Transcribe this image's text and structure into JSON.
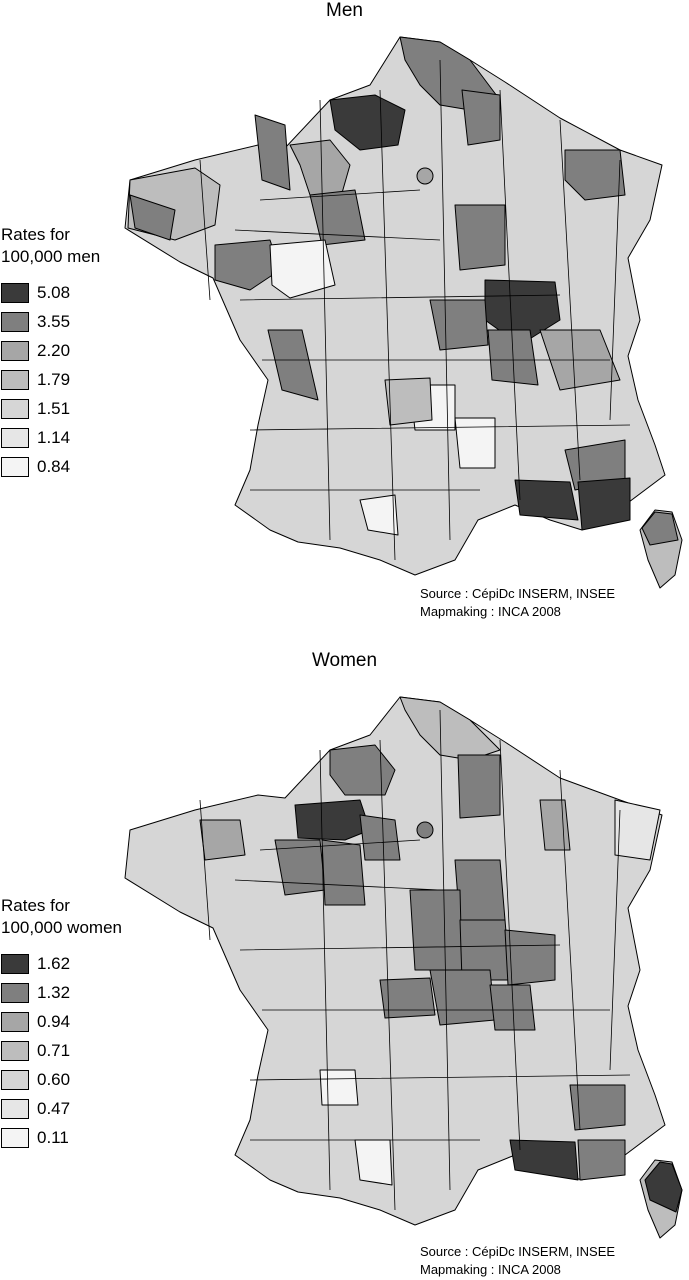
{
  "maps": [
    {
      "title": "Men",
      "legend": {
        "title_lines": [
          "Rates for",
          "100,000 men"
        ],
        "classes": [
          {
            "value": "5.08",
            "color": "#3a3a3a"
          },
          {
            "value": "3.55",
            "color": "#7f7f7f"
          },
          {
            "value": "2.20",
            "color": "#a6a6a6"
          },
          {
            "value": "1.79",
            "color": "#bdbdbd"
          },
          {
            "value": "1.51",
            "color": "#d6d6d6"
          },
          {
            "value": "1.14",
            "color": "#e6e6e6"
          },
          {
            "value": "0.84",
            "color": "#f4f4f4"
          }
        ]
      },
      "source": [
        "Source : CépiDc INSERM, INSEE",
        "Mapmaking : INCA 2008"
      ]
    },
    {
      "title": "Women",
      "legend": {
        "title_lines": [
          "Rates for",
          "100,000 women"
        ],
        "classes": [
          {
            "value": "1.62",
            "color": "#3a3a3a"
          },
          {
            "value": "1.32",
            "color": "#7f7f7f"
          },
          {
            "value": "0.94",
            "color": "#a6a6a6"
          },
          {
            "value": "0.71",
            "color": "#bdbdbd"
          },
          {
            "value": "0.60",
            "color": "#d6d6d6"
          },
          {
            "value": "0.47",
            "color": "#e6e6e6"
          },
          {
            "value": "0.11",
            "color": "#f4f4f4"
          }
        ]
      },
      "source": [
        "Source : CépiDc INSERM, INSEE",
        "Mapmaking : INCA 2008"
      ]
    }
  ]
}
